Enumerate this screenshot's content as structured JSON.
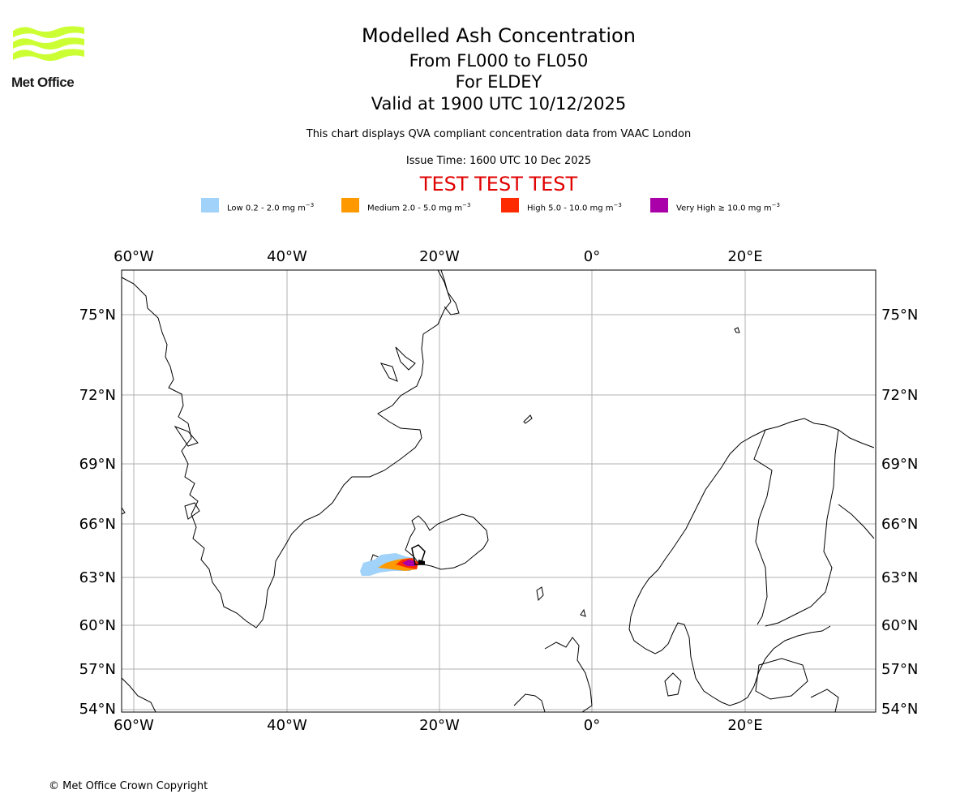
{
  "logo": {
    "text": "Met Office",
    "brand_color": "#ccff33"
  },
  "header": {
    "title": "Modelled Ash Concentration",
    "range": "From FL000 to FL050",
    "location": "For ELDEY",
    "valid": "Valid at 1900 UTC 10/12/2025",
    "description": "This chart displays QVA compliant concentration data from VAAC London",
    "issue_time": "Issue Time: 1600 UTC 10 Dec 2025",
    "test_banner": "TEST TEST TEST",
    "test_color": "#e00000"
  },
  "legend": [
    {
      "level": "Low",
      "range": "0.2 - 2.0 mg m",
      "color": "#a0d2fa"
    },
    {
      "level": "Medium",
      "range": "2.0 - 5.0 mg m",
      "color": "#ff9900"
    },
    {
      "level": "High",
      "range": "5.0 - 10.0 mg m",
      "color": "#ff2b00"
    },
    {
      "level": "Very High",
      "range": "≥  10.0 mg m",
      "color": "#aa00aa"
    }
  ],
  "legend_unit_exp": "−3",
  "map": {
    "lon_labels": [
      "60°W",
      "40°W",
      "20°W",
      "0°",
      "20°E"
    ],
    "lat_labels": [
      "75°N",
      "72°N",
      "69°N",
      "66°N",
      "63°N",
      "60°N",
      "57°N",
      "54°N"
    ],
    "volcano": "ELDEY"
  },
  "footer": {
    "copyright": "© Met Office Crown Copyright"
  }
}
